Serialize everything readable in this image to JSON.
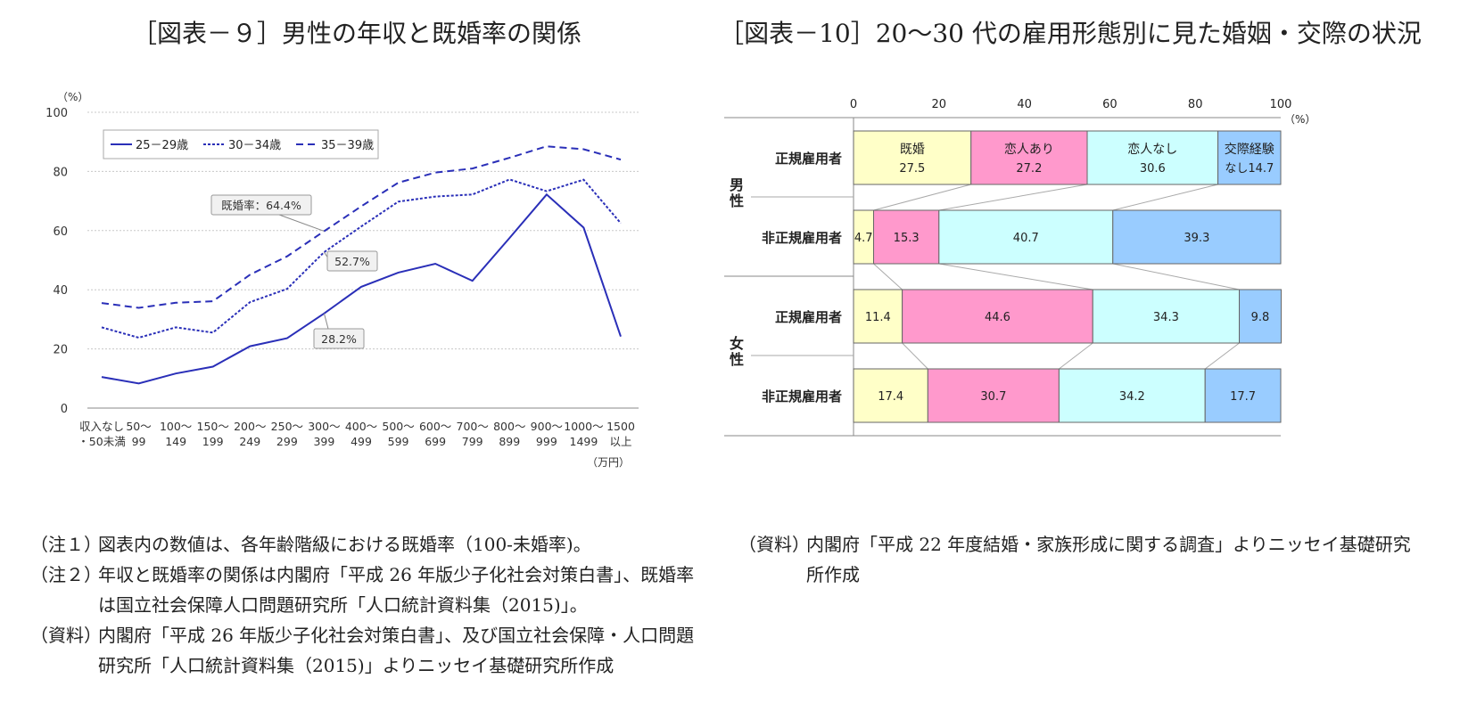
{
  "left": {
    "title": "［図表－９］男性の年収と既婚率の関係",
    "notes": [
      {
        "label": "（注１）",
        "text": "図表内の数値は、各年齢階級における既婚率（100-未婚率)。"
      },
      {
        "label": "（注２）",
        "text": "年収と既婚率の関係は内閣府「平成 26 年版少子化社会対策白書」、既婚率は国立社会保障人口問題研究所「人口統計資料集（2015)」。"
      },
      {
        "label": "（資料）",
        "text": "内閣府「平成 26 年版少子化社会対策白書」、及び国立社会保障・人口問題研究所「人口統計資料集（2015)」よりニッセイ基礎研究所作成"
      }
    ]
  },
  "right": {
    "title": "［図表－10］20～30 代の雇用形態別に見た婚姻・交際の状況",
    "notes": [
      {
        "label": "（資料）",
        "text": "内閣府「平成 22 年度結婚・家族形成に関する調査」よりニッセイ基礎研究所作成"
      }
    ]
  },
  "chart_data": [
    {
      "type": "line",
      "title": "",
      "ylabel": "（%）",
      "xunit": "（万円）",
      "ylim": [
        0,
        100
      ],
      "yticks": [
        0,
        20,
        40,
        60,
        80,
        100
      ],
      "grid": true,
      "legend_position": "top-left",
      "categories": [
        [
          "収入なし",
          "・50未満"
        ],
        [
          "50～",
          "99"
        ],
        [
          "100～",
          "149"
        ],
        [
          "150～",
          "199"
        ],
        [
          "200～",
          "249"
        ],
        [
          "250～",
          "299"
        ],
        [
          "300～",
          "399"
        ],
        [
          "400～",
          "499"
        ],
        [
          "500～",
          "599"
        ],
        [
          "600～",
          "699"
        ],
        [
          "700～",
          "799"
        ],
        [
          "800～",
          "899"
        ],
        [
          "900～",
          "999"
        ],
        [
          "1000～",
          "1499"
        ],
        [
          "1500",
          "以上"
        ]
      ],
      "series": [
        {
          "name": "25－29歳",
          "style": "solid",
          "color": "#2a2fb8",
          "values": [
            10.5,
            8.3,
            11.7,
            14.0,
            20.9,
            23.6,
            32.0,
            41.0,
            45.8,
            48.8,
            43.0,
            57.5,
            72.2,
            61.0,
            24.2
          ]
        },
        {
          "name": "30－34歳",
          "style": "dotted",
          "color": "#2a2fb8",
          "values": [
            27.3,
            23.8,
            27.3,
            25.5,
            35.8,
            40.3,
            52.7,
            61.4,
            69.8,
            71.5,
            72.2,
            77.3,
            73.3,
            77.2,
            62.5
          ]
        },
        {
          "name": "35－39歳",
          "style": "dashed",
          "color": "#2a2fb8",
          "values": [
            35.5,
            33.9,
            35.6,
            36.1,
            45.1,
            51.3,
            59.8,
            68.2,
            76.2,
            79.6,
            81.0,
            84.6,
            88.5,
            87.5,
            84.0
          ]
        }
      ],
      "annotations": [
        {
          "text": "既婚率：64.4%",
          "series": "35－39歳",
          "category_index": 6
        },
        {
          "text": "52.7%",
          "series": "30－34歳",
          "category_index": 6
        },
        {
          "text": "28.2%",
          "series": "25－29歳",
          "category_index": 6
        }
      ]
    },
    {
      "type": "stacked-bar-horizontal",
      "title": "",
      "xunit": "（%）",
      "xlim": [
        0,
        100
      ],
      "xticks": [
        0,
        20,
        40,
        60,
        80,
        100
      ],
      "groups": [
        {
          "name": "男性",
          "rows": [
            "正規雇用者",
            "非正規雇用者"
          ]
        },
        {
          "name": "女性",
          "rows": [
            "正規雇用者",
            "非正規雇用者"
          ]
        }
      ],
      "segments": [
        {
          "name": "既婚",
          "color": "#ffffc8"
        },
        {
          "name": "恋人あり",
          "color": "#ff99cc"
        },
        {
          "name": "恋人なし",
          "color": "#ccffff"
        },
        {
          "name": "交際経験なし",
          "color": "#99ccff"
        }
      ],
      "first_row_labels": [
        [
          "既婚",
          "27.5"
        ],
        [
          "恋人あり",
          "27.2"
        ],
        [
          "恋人なし",
          "30.6"
        ],
        [
          "交際経験",
          "なし14.7"
        ]
      ],
      "rows": [
        {
          "label": "正規雇用者",
          "values": [
            27.5,
            27.2,
            30.6,
            14.7
          ]
        },
        {
          "label": "非正規雇用者",
          "values": [
            4.7,
            15.3,
            40.7,
            39.3
          ]
        },
        {
          "label": "正規雇用者",
          "values": [
            11.4,
            44.6,
            34.3,
            9.8
          ]
        },
        {
          "label": "非正規雇用者",
          "values": [
            17.4,
            30.7,
            34.2,
            17.7
          ]
        }
      ]
    }
  ]
}
